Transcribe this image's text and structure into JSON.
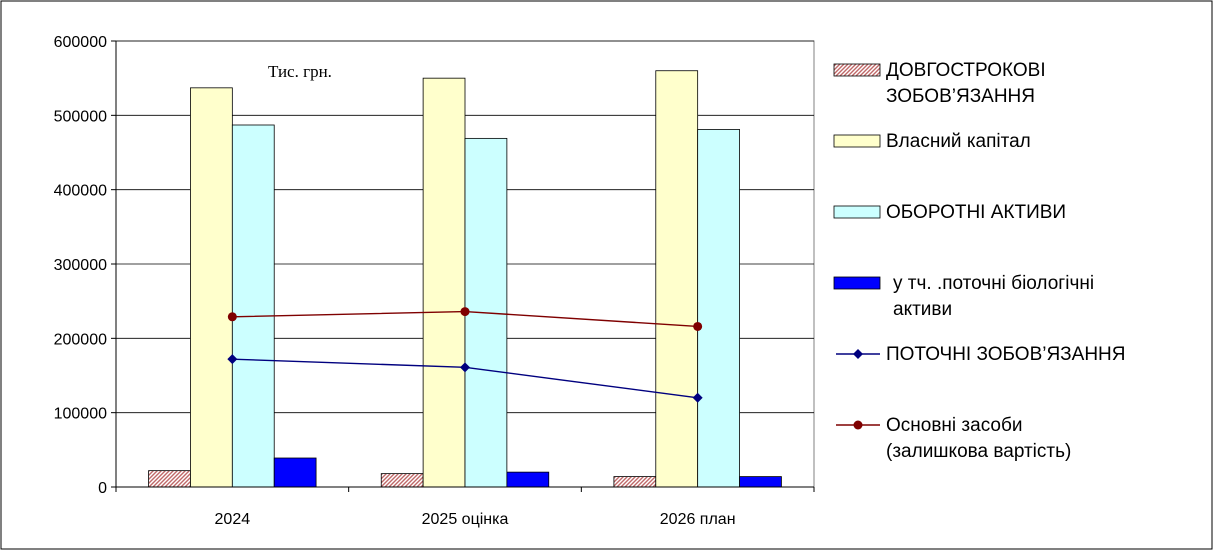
{
  "chart_data": {
    "type": "bar",
    "annotation": "Тис. грн.",
    "categories": [
      "2024",
      "2025 оцінка",
      "2026 план"
    ],
    "ylim": [
      0,
      600000
    ],
    "yticks": [
      0,
      100000,
      200000,
      300000,
      400000,
      500000,
      600000
    ],
    "grid": true,
    "legend_position": "right",
    "series": [
      {
        "name": "ДОВГОСТРОКОВІ ЗОБОВ’ЯЗАННЯ",
        "kind": "bar",
        "fill": "hatch-pink",
        "color": "#c08080",
        "values": [
          22000,
          18000,
          14000
        ]
      },
      {
        "name": "Власний капітал",
        "kind": "bar",
        "color": "#ffffcc",
        "values": [
          537000,
          550000,
          560000
        ]
      },
      {
        "name": "ОБОРОТНІ АКТИВИ",
        "kind": "bar",
        "color": "#ccffff",
        "values": [
          487000,
          469000,
          481000
        ]
      },
      {
        "name": "у тч. .поточні біологічні активи",
        "kind": "bar",
        "color": "#0000ff",
        "values": [
          39000,
          20000,
          14000
        ]
      },
      {
        "name": "ПОТОЧНІ ЗОБОВ’ЯЗАННЯ",
        "kind": "line",
        "marker": "diamond",
        "color": "#00007f",
        "values": [
          172000,
          161000,
          120000
        ]
      },
      {
        "name": "Основні засоби (залишкова вартість)",
        "kind": "line",
        "marker": "circle",
        "color": "#7f0000",
        "values": [
          229000,
          236000,
          216000
        ]
      }
    ]
  }
}
